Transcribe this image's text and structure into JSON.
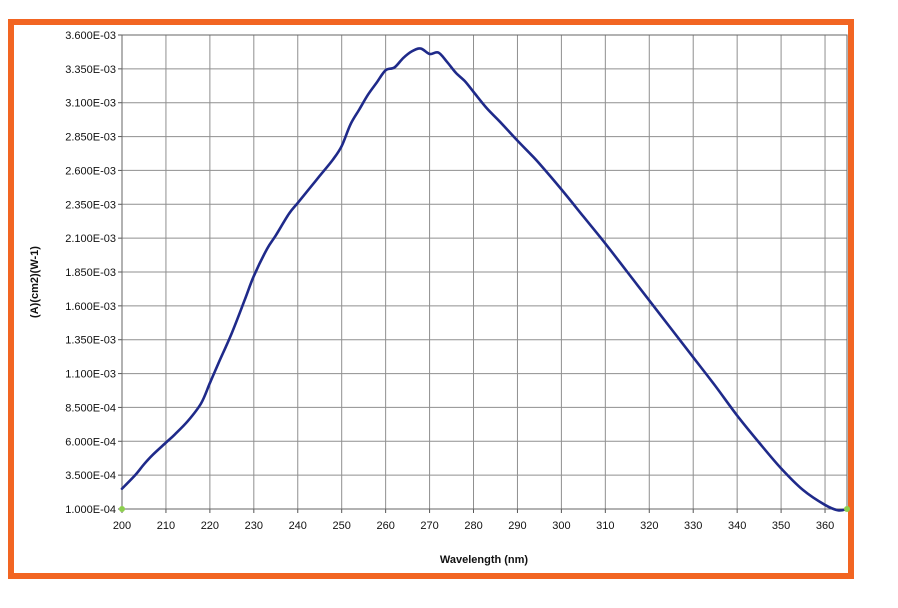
{
  "colors": {
    "frame": "#f26522",
    "series": "#1f2a8a",
    "grid": "#8f8f8f",
    "endpoint_marker": "#8ccf4d"
  },
  "chart_data": {
    "type": "line",
    "title": "",
    "xlabel": "Wavelength (nm)",
    "ylabel": "(A)(cm2)(W-1)",
    "xlim": [
      200,
      365
    ],
    "ylim": [
      0.0001,
      0.0036
    ],
    "grid": true,
    "x_ticks": [
      200,
      210,
      220,
      230,
      240,
      250,
      260,
      270,
      280,
      290,
      300,
      310,
      320,
      330,
      340,
      350,
      360
    ],
    "x_tick_labels": [
      "200",
      "210",
      "220",
      "230",
      "240",
      "250",
      "260",
      "270",
      "280",
      "290",
      "300",
      "310",
      "320",
      "330",
      "340",
      "350",
      "360"
    ],
    "y_ticks": [
      0.0001,
      0.00035,
      0.0006,
      0.00085,
      0.0011,
      0.00135,
      0.0016,
      0.00185,
      0.0021,
      0.00235,
      0.0026,
      0.00285,
      0.0031,
      0.00335,
      0.0036
    ],
    "y_tick_labels": [
      "1.000E-04",
      "3.500E-04",
      "6.000E-04",
      "8.500E-04",
      "1.100E-03",
      "1.350E-03",
      "1.600E-03",
      "1.850E-03",
      "2.100E-03",
      "2.350E-03",
      "2.600E-03",
      "2.850E-03",
      "3.100E-03",
      "3.350E-03",
      "3.600E-03"
    ],
    "series": [
      {
        "x": [
          200,
          203,
          205,
          207,
          210,
          212,
          215,
          218,
          220,
          222,
          225,
          228,
          230,
          233,
          235,
          238,
          240,
          243,
          245,
          248,
          250,
          252,
          254,
          256,
          258,
          260,
          262,
          264,
          266,
          268,
          270,
          272,
          274,
          276,
          278,
          280,
          283,
          286,
          290,
          293,
          295,
          300,
          305,
          310,
          315,
          320,
          325,
          330,
          335,
          340,
          345,
          350,
          355,
          360,
          363,
          365
        ],
        "y": [
          0.00025,
          0.00035,
          0.00043,
          0.0005,
          0.00059,
          0.00065,
          0.00075,
          0.00088,
          0.00103,
          0.00118,
          0.0014,
          0.00165,
          0.00182,
          0.00202,
          0.00212,
          0.00228,
          0.00236,
          0.00248,
          0.00256,
          0.00268,
          0.00278,
          0.00294,
          0.00305,
          0.00316,
          0.00325,
          0.00334,
          0.00336,
          0.00343,
          0.00348,
          0.0035,
          0.00346,
          0.00347,
          0.0034,
          0.00332,
          0.00326,
          0.00318,
          0.00306,
          0.00296,
          0.00282,
          0.00272,
          0.00265,
          0.00246,
          0.00226,
          0.00206,
          0.00185,
          0.00164,
          0.00143,
          0.00122,
          0.00101,
          0.00079,
          0.00059,
          0.0004,
          0.00024,
          0.00013,
          9e-05,
          0.0001
        ],
        "color": "#1f2a8a"
      }
    ]
  }
}
